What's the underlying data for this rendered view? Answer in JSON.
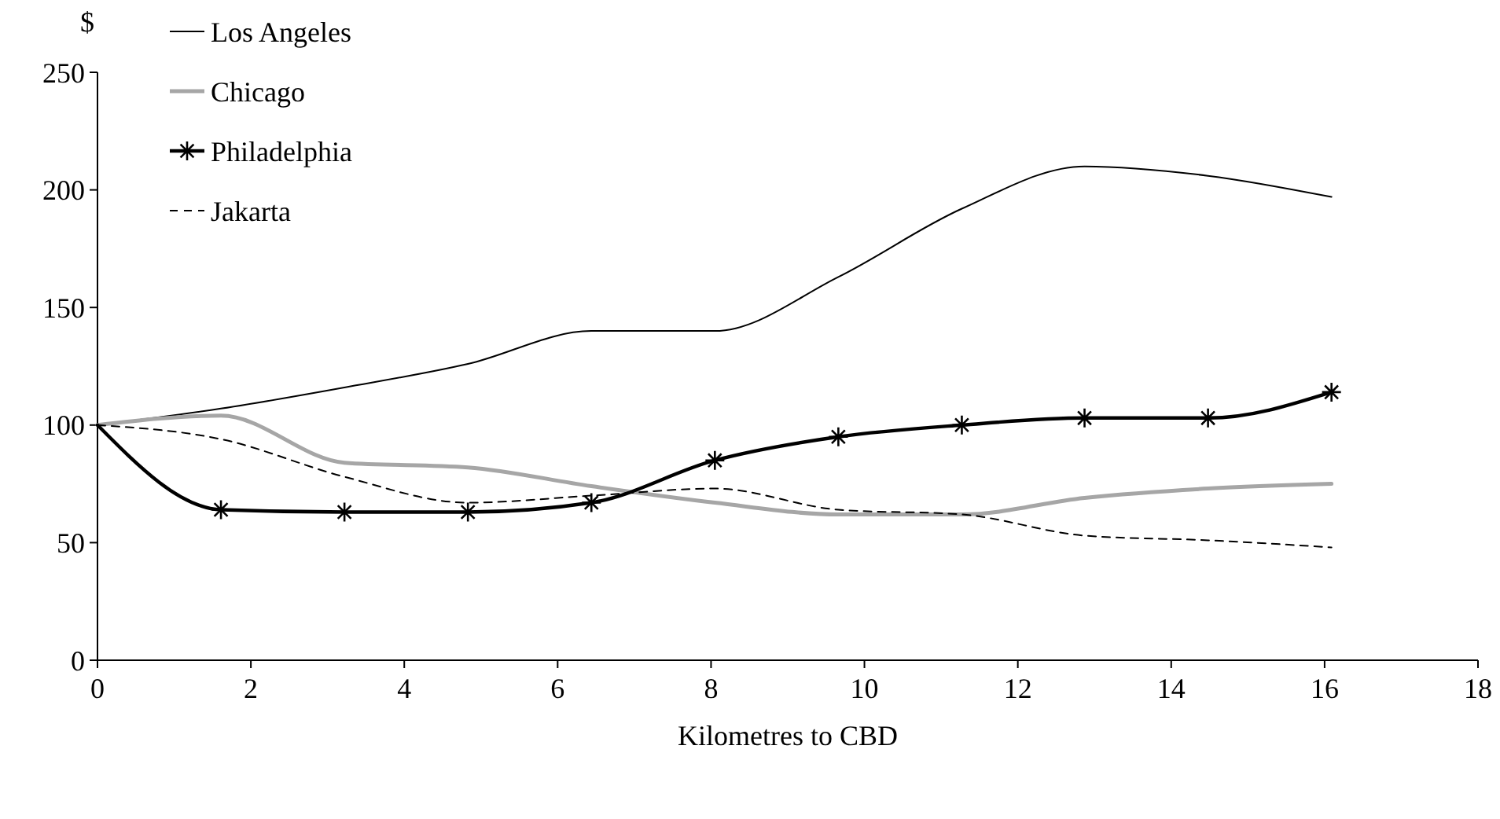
{
  "chart_data": {
    "type": "line",
    "ylabel": "$",
    "xlabel": "Kilometres to CBD",
    "x": [
      0,
      1.61,
      3.22,
      4.83,
      6.44,
      8.05,
      9.66,
      11.27,
      12.87,
      14.48,
      16.09
    ],
    "xlim": [
      0,
      18
    ],
    "xticks": [
      0,
      2,
      4,
      6,
      8,
      10,
      12,
      14,
      16,
      18
    ],
    "ylim": [
      0,
      250
    ],
    "yticks": [
      0,
      50,
      100,
      150,
      200,
      250
    ],
    "grid": false,
    "legend": "top left",
    "series": [
      {
        "name": "Los Angeles",
        "color": "#000000",
        "values": [
          100,
          107,
          116,
          126,
          140,
          140,
          163,
          192,
          210,
          206,
          197
        ],
        "line_style": "solid",
        "marker": "none"
      },
      {
        "name": "Chicago",
        "color": "#a6a6a6",
        "values": [
          100,
          104,
          84,
          82,
          74,
          67,
          62,
          62,
          69,
          73,
          75
        ],
        "line_style": "solid",
        "marker": "none"
      },
      {
        "name": "Philadelphia",
        "color": "#000000",
        "values": [
          100,
          64,
          63,
          63,
          67,
          85,
          95,
          100,
          103,
          103,
          114
        ],
        "line_style": "solid",
        "marker": "cross"
      },
      {
        "name": "Jakarta",
        "color": "#000000",
        "values": [
          100,
          94,
          78,
          67,
          70,
          73,
          64,
          62,
          53,
          51,
          48
        ],
        "line_style": "dashed",
        "marker": "none"
      }
    ]
  }
}
